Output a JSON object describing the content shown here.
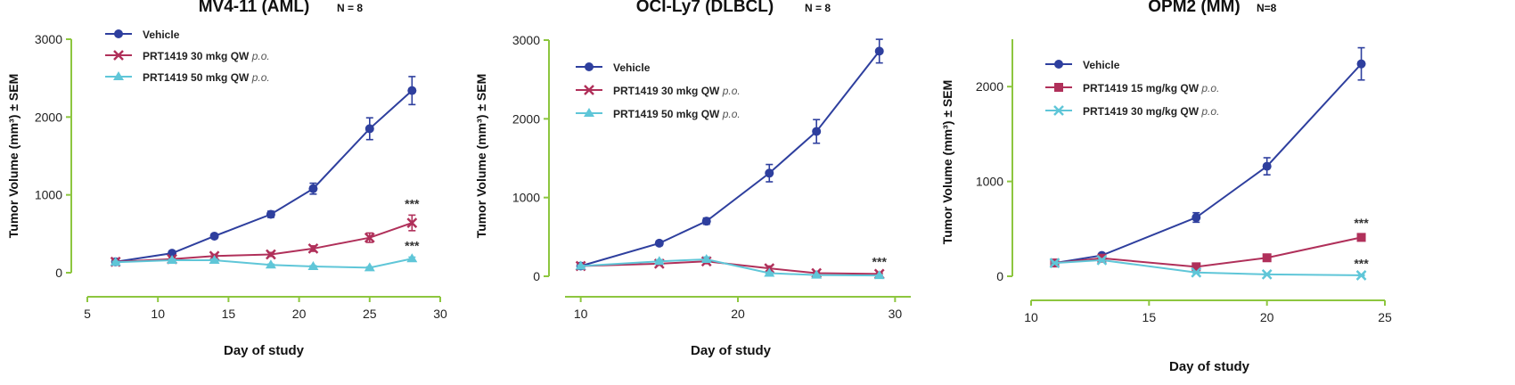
{
  "colors": {
    "axis": "#8dc63f",
    "vehicle": "#2e3f9e",
    "treat_low": "#b0305a",
    "treat_high": "#5fc6d8",
    "asterisk": "#333333"
  },
  "chart_data": [
    {
      "type": "line",
      "title": "MV4-11 (AML)",
      "n_label": "N = 8",
      "xlabel": "Day of study",
      "ylabel": "Tumor Volume (mm³) ± SEM",
      "xlim": [
        5,
        30
      ],
      "ylim": [
        0,
        3000
      ],
      "xticks": [
        5,
        10,
        15,
        20,
        25,
        30
      ],
      "yticks": [
        0,
        1000,
        2000,
        3000
      ],
      "legend_position": "top-left",
      "significance": [
        {
          "series": 1,
          "x": 28,
          "y": 640,
          "label": "***"
        },
        {
          "series": 2,
          "x": 28,
          "y": 180,
          "label": "***"
        }
      ],
      "series": [
        {
          "name": "Vehicle",
          "suffix": "",
          "marker": "circle",
          "color_key": "vehicle",
          "x": [
            7,
            11,
            14,
            18,
            21,
            25,
            28
          ],
          "y": [
            140,
            250,
            470,
            750,
            1080,
            1850,
            2340
          ],
          "err": [
            15,
            20,
            30,
            40,
            70,
            140,
            180
          ]
        },
        {
          "name": "PRT1419 30 mkg QW",
          "suffix": "p.o.",
          "marker": "x",
          "color_key": "treat_low",
          "x": [
            7,
            11,
            14,
            18,
            21,
            25,
            28
          ],
          "y": [
            140,
            175,
            215,
            235,
            310,
            450,
            640
          ],
          "err": [
            10,
            15,
            20,
            25,
            35,
            60,
            100
          ]
        },
        {
          "name": "PRT1419 50 mkg QW",
          "suffix": "p.o.",
          "marker": "triangle",
          "color_key": "treat_high",
          "x": [
            7,
            11,
            14,
            18,
            21,
            25,
            28
          ],
          "y": [
            135,
            160,
            160,
            100,
            80,
            65,
            180
          ],
          "err": [
            10,
            15,
            15,
            10,
            10,
            10,
            20
          ]
        }
      ]
    },
    {
      "type": "line",
      "title": "OCI-Ly7 (DLBCL)",
      "n_label": "N = 8",
      "xlabel": "Day of study",
      "ylabel": "Tumor Volume (mm³) ± SEM",
      "xlim": [
        9,
        31
      ],
      "ylim": [
        0,
        3000
      ],
      "xticks": [
        10,
        20,
        30
      ],
      "yticks": [
        0,
        1000,
        2000,
        3000
      ],
      "legend_position": "top-left",
      "significance": [
        {
          "series": 1,
          "x": 29,
          "y": 40,
          "label": "***"
        }
      ],
      "series": [
        {
          "name": "Vehicle",
          "suffix": "",
          "marker": "circle",
          "color_key": "vehicle",
          "x": [
            10,
            15,
            18,
            22,
            25,
            29
          ],
          "y": [
            130,
            420,
            700,
            1310,
            1840,
            2860
          ],
          "err": [
            15,
            30,
            40,
            110,
            150,
            150
          ]
        },
        {
          "name": "PRT1419 30 mkg QW",
          "suffix": "p.o.",
          "marker": "x",
          "color_key": "treat_low",
          "x": [
            10,
            15,
            18,
            22,
            25,
            29
          ],
          "y": [
            130,
            160,
            190,
            100,
            40,
            30
          ],
          "err": [
            10,
            20,
            30,
            30,
            15,
            10
          ]
        },
        {
          "name": "PRT1419 50 mkg QW",
          "suffix": "p.o.",
          "marker": "triangle",
          "color_key": "treat_high",
          "x": [
            10,
            15,
            18,
            22,
            25,
            29
          ],
          "y": [
            130,
            190,
            215,
            40,
            15,
            10
          ],
          "err": [
            10,
            20,
            30,
            10,
            5,
            5
          ]
        }
      ]
    },
    {
      "type": "line",
      "title": "OPM2 (MM)",
      "n_label": "N=8",
      "xlabel": "Day of study",
      "ylabel": "Tumor Volume (mm³) ± SEM",
      "xlim": [
        10,
        25
      ],
      "ylim": [
        0,
        2500
      ],
      "xticks": [
        10,
        15,
        20,
        25
      ],
      "yticks": [
        0,
        1000,
        2000
      ],
      "legend_position": "top-left",
      "significance": [
        {
          "series": 1,
          "x": 24,
          "y": 410,
          "label": "***"
        },
        {
          "series": 2,
          "x": 24,
          "y": 10,
          "label": "***"
        }
      ],
      "series": [
        {
          "name": "Vehicle",
          "suffix": "",
          "marker": "circle",
          "color_key": "vehicle",
          "x": [
            11,
            13,
            17,
            20,
            24
          ],
          "y": [
            140,
            220,
            620,
            1160,
            2240
          ],
          "err": [
            15,
            20,
            50,
            90,
            170
          ]
        },
        {
          "name": "PRT1419 15 mg/kg QW",
          "suffix": "p.o.",
          "marker": "square",
          "color_key": "treat_low",
          "x": [
            11,
            13,
            17,
            20,
            24
          ],
          "y": [
            140,
            190,
            100,
            195,
            410
          ],
          "err": [
            10,
            20,
            15,
            20,
            30
          ]
        },
        {
          "name": "PRT1419 30 mg/kg QW",
          "suffix": "p.o.",
          "marker": "x",
          "color_key": "treat_high",
          "x": [
            11,
            13,
            17,
            20,
            24
          ],
          "y": [
            140,
            170,
            40,
            20,
            10
          ],
          "err": [
            10,
            15,
            10,
            5,
            5
          ]
        }
      ]
    }
  ]
}
